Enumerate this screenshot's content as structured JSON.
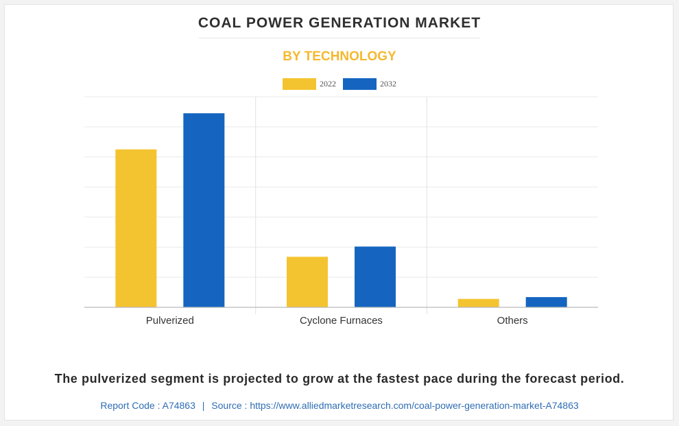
{
  "title": "COAL POWER GENERATION MARKET",
  "subtitle": "BY TECHNOLOGY",
  "footnote": "The pulverized segment is projected to grow at the fastest pace during the forecast period.",
  "source": {
    "report_code": "Report Code : A74863",
    "separator": "|",
    "source_text": "Source : https://www.alliedmarketresearch.com/coal-power-generation-market-A74863"
  },
  "colors": {
    "series_2022": "#f4c430",
    "series_2032": "#1565c0",
    "title": "#2f2f2f",
    "subtitle": "#f5b82e",
    "link": "#2e6db4"
  },
  "chart_data": {
    "type": "bar",
    "title": "COAL POWER GENERATION MARKET",
    "subtitle": "BY TECHNOLOGY",
    "categories": [
      "Pulverized",
      "Cyclone Furnaces",
      "Others"
    ],
    "series": [
      {
        "name": "2022",
        "values": [
          52.5,
          16.8,
          2.8
        ]
      },
      {
        "name": "2032",
        "values": [
          64.5,
          20.2,
          3.4
        ]
      }
    ],
    "xlabel": "",
    "ylabel": "",
    "ylim": [
      0,
      70
    ],
    "y_tick_step": 10,
    "y_tick_labels_visible": false,
    "grid": true,
    "legend_position": "top-center"
  }
}
